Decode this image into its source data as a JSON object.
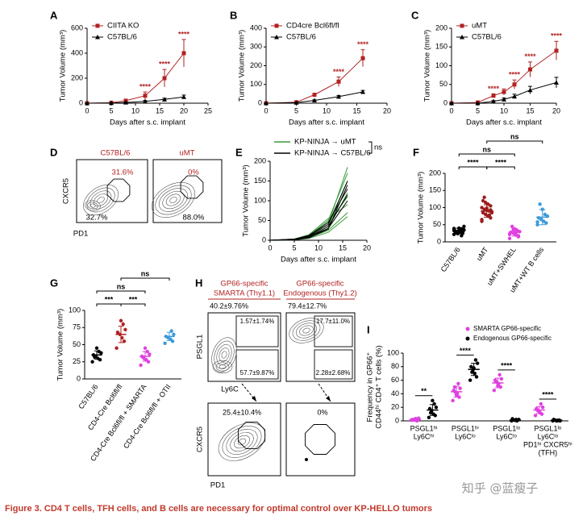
{
  "figure_caption": "Figure 3. CD4 T cells, TFH cells, and B cells are necessary for optimal control over KP-HELLO tumors",
  "watermark": "知乎 @蓝瘦子",
  "chart_data": [
    {
      "panel": "A",
      "type": "line",
      "x": [
        0,
        5,
        8,
        12,
        16,
        20
      ],
      "xlim": [
        0,
        25
      ],
      "xticks": [
        0,
        5,
        10,
        15,
        20,
        25
      ],
      "ylim": [
        0,
        600
      ],
      "yticks": [
        0,
        200,
        400,
        600
      ],
      "x_label": "Days after s.c. implant",
      "y_label": "Tumor Volume (mm³)",
      "legend": "upper left",
      "series": [
        {
          "name": "CIITA KO",
          "color": "#b22222",
          "marker": "square",
          "values": [
            0,
            4,
            20,
            60,
            200,
            400
          ],
          "errors": [
            0,
            3,
            10,
            30,
            70,
            110
          ]
        },
        {
          "name": "C57BL/6",
          "color": "#000000",
          "marker": "triangle",
          "values": [
            0,
            2,
            6,
            15,
            30,
            50
          ],
          "errors": [
            0,
            1,
            3,
            6,
            10,
            15
          ]
        }
      ],
      "significance": [
        {
          "x": 12,
          "label": "****"
        },
        {
          "x": 16,
          "label": "****"
        },
        {
          "x": 20,
          "label": "****"
        }
      ]
    },
    {
      "panel": "B",
      "type": "line",
      "x": [
        0,
        5,
        8,
        12,
        16
      ],
      "xlim": [
        0,
        20
      ],
      "xticks": [
        0,
        5,
        10,
        15,
        20
      ],
      "ylim": [
        0,
        400
      ],
      "yticks": [
        0,
        100,
        200,
        300,
        400
      ],
      "x_label": "Days after s.c. implant",
      "y_label": "Tumor Volume (mm³)",
      "legend": "upper left",
      "series": [
        {
          "name": "CD4cre Bcl6fl/fl",
          "color": "#b22222",
          "marker": "square",
          "values": [
            0,
            5,
            45,
            115,
            240
          ],
          "errors": [
            0,
            3,
            8,
            25,
            45
          ]
        },
        {
          "name": "C57BL/6",
          "color": "#000000",
          "marker": "triangle",
          "values": [
            0,
            3,
            15,
            35,
            60
          ],
          "errors": [
            0,
            1,
            3,
            6,
            8
          ]
        }
      ],
      "significance": [
        {
          "x": 12,
          "label": "****"
        },
        {
          "x": 16,
          "label": "****"
        }
      ]
    },
    {
      "panel": "C",
      "type": "line",
      "x": [
        0,
        5,
        8,
        10,
        12,
        15,
        20
      ],
      "xlim": [
        0,
        20
      ],
      "xticks": [
        0,
        5,
        10,
        15,
        20
      ],
      "ylim": [
        0,
        200
      ],
      "yticks": [
        0,
        50,
        100,
        150,
        200
      ],
      "x_label": "Days after s.c. implant",
      "y_label": "Tumor Volume (mm³)",
      "legend": "upper left",
      "series": [
        {
          "name": "uMT",
          "color": "#b22222",
          "marker": "square",
          "values": [
            0,
            2,
            20,
            30,
            50,
            90,
            140
          ],
          "errors": [
            0,
            1,
            5,
            8,
            12,
            20,
            25
          ]
        },
        {
          "name": "C57BL/6",
          "color": "#000000",
          "marker": "triangle",
          "values": [
            0,
            0,
            5,
            10,
            18,
            35,
            55
          ],
          "errors": [
            0,
            0,
            2,
            4,
            6,
            10,
            14
          ]
        }
      ],
      "significance": [
        {
          "x": 8,
          "label": "****"
        },
        {
          "x": 12,
          "label": "****"
        },
        {
          "x": 15,
          "label": "****"
        },
        {
          "x": 20,
          "label": "****"
        }
      ]
    },
    {
      "panel": "E",
      "type": "line",
      "x": [
        0,
        5,
        8,
        12,
        16
      ],
      "xlim": [
        0,
        20
      ],
      "xticks": [
        0,
        5,
        10,
        15,
        20
      ],
      "ylim": [
        0,
        200
      ],
      "yticks": [
        0,
        50,
        100,
        150,
        200
      ],
      "x_label": "Days after s.c. implant",
      "y_label": "Tumor Volume (mm³)",
      "legend": "top",
      "legend_annotation": "ns",
      "series": [
        {
          "name": "KP-NINJA → uMT",
          "color": "#3a9a3a",
          "lines": [
            [
              0,
              2,
              10,
              40,
              185
            ],
            [
              0,
              3,
              12,
              50,
              170
            ],
            [
              0,
              2,
              8,
              35,
              150
            ],
            [
              0,
              1,
              6,
              30,
              120
            ],
            [
              0,
              2,
              9,
              45,
              110
            ],
            [
              0,
              3,
              14,
              55,
              90
            ],
            [
              0,
              2,
              7,
              25,
              70
            ],
            [
              0,
              1,
              5,
              20,
              60
            ]
          ]
        },
        {
          "name": "KP-NINJA → C57BL/6",
          "color": "#000000",
          "lines": [
            [
              0,
              2,
              10,
              40,
              150
            ],
            [
              0,
              3,
              12,
              45,
              130
            ],
            [
              0,
              2,
              8,
              35,
              115
            ],
            [
              0,
              2,
              9,
              30,
              100
            ],
            [
              0,
              1,
              6,
              28,
              140
            ]
          ]
        }
      ]
    },
    {
      "panel": "F",
      "type": "dot",
      "y_label": "Tumor Volume (mm³)",
      "ylim": [
        0,
        200
      ],
      "yticks": [
        0,
        50,
        100,
        150,
        200
      ],
      "categories": [
        "C57BL/6",
        "uMT",
        "uMT+SWHEL",
        "uMT+WT B cells"
      ],
      "colors": [
        "#000000",
        "#9b1c1c",
        "#e040e0",
        "#3a9bd9"
      ],
      "points": [
        [
          22,
          25,
          28,
          30,
          32,
          35,
          38,
          40,
          27,
          33,
          29,
          36,
          24,
          31,
          45,
          18,
          34,
          26,
          39,
          30
        ],
        [
          60,
          70,
          75,
          80,
          85,
          88,
          90,
          92,
          95,
          100,
          105,
          110,
          115,
          120,
          85,
          78,
          98,
          130,
          65,
          93
        ],
        [
          10,
          15,
          20,
          25,
          28,
          30,
          33,
          38,
          45,
          22,
          18,
          27,
          35
        ],
        [
          50,
          55,
          60,
          65,
          70,
          75,
          80,
          95,
          110,
          58
        ]
      ],
      "means": [
        32,
        90,
        28,
        72
      ],
      "sds": [
        8,
        18,
        11,
        22
      ],
      "comparisons": [
        {
          "between": [
            0,
            1
          ],
          "label": "****"
        },
        {
          "between": [
            1,
            2
          ],
          "label": "****"
        },
        {
          "between": [
            0,
            2
          ],
          "label": "ns"
        },
        {
          "between": [
            1,
            3
          ],
          "label": "ns"
        }
      ]
    },
    {
      "panel": "G",
      "type": "dot",
      "y_label": "Tumor Volume (mm³)",
      "ylim": [
        0,
        100
      ],
      "yticks": [
        0,
        25,
        50,
        75,
        100
      ],
      "categories": [
        "C57BL/6",
        "CD4-Cre Bcl6fl/fl",
        "CD4-Cre Bcl6fl/fl + SMARTA",
        "CD4-Cre Bcl6fl/fl + OTII"
      ],
      "colors": [
        "#000000",
        "#b22222",
        "#e040e0",
        "#3a9bd9"
      ],
      "points": [
        [
          25,
          28,
          30,
          33,
          35,
          38,
          40,
          45,
          32
        ],
        [
          45,
          55,
          60,
          65,
          68,
          72,
          80,
          85
        ],
        [
          20,
          25,
          28,
          30,
          33,
          36,
          40,
          45,
          32
        ],
        [
          52,
          55,
          58,
          60,
          62,
          65,
          70
        ]
      ],
      "means": [
        35,
        65,
        33,
        62
      ],
      "sds": [
        6,
        12,
        7,
        6
      ],
      "comparisons": [
        {
          "between": [
            0,
            1
          ],
          "label": "***"
        },
        {
          "between": [
            1,
            2
          ],
          "label": "***"
        },
        {
          "between": [
            0,
            2
          ],
          "label": "ns"
        },
        {
          "between": [
            1,
            3
          ],
          "label": "ns"
        }
      ]
    },
    {
      "panel": "I",
      "type": "dot",
      "y_label": [
        "Frequency in GP66⁺",
        "CD44ʰⁱ CD4⁺ T cells (%)"
      ],
      "ylim": [
        0,
        100
      ],
      "yticks": [
        0,
        20,
        40,
        60,
        80,
        100
      ],
      "categories": [
        [
          "PSGL1ʰⁱ",
          "Ly6Cʰⁱ"
        ],
        [
          "PSGL1ʰⁱ",
          "Ly6Cˡᵒ"
        ],
        [
          "PSGL1ˡᵒ",
          "Ly6Cˡᵒ"
        ],
        [
          "PSGL1ˡᵒ",
          "Ly6Cˡᵒ",
          "PD1ʰⁱ CXCR5ʰⁱ",
          "(TFH)"
        ]
      ],
      "series": [
        {
          "name": "SMARTA GP66-specific",
          "color": "#e040e0",
          "points": [
            [
              1,
              2,
              3,
              1,
              2,
              4,
              0,
              3
            ],
            [
              30,
              35,
              40,
              42,
              45,
              48,
              55,
              38,
              50
            ],
            [
              45,
              50,
              55,
              57,
              60,
              62,
              68,
              52,
              58
            ],
            [
              8,
              10,
              12,
              15,
              18,
              20,
              25,
              14,
              16
            ]
          ],
          "means": [
            2,
            43,
            56,
            16
          ],
          "sds": [
            1.5,
            8,
            7,
            5
          ]
        },
        {
          "name": "Endogenous GP66-specific",
          "color": "#000000",
          "points": [
            [
              5,
              8,
              10,
              15,
              18,
              20,
              25,
              30,
              12
            ],
            [
              60,
              65,
              70,
              75,
              80,
              85,
              90,
              78,
              72
            ],
            [
              0,
              1,
              2,
              1,
              3,
              2,
              0,
              1
            ],
            [
              0,
              1,
              0,
              1,
              2,
              0,
              1,
              0
            ]
          ],
          "means": [
            16,
            76,
            1,
            1
          ],
          "sds": [
            8,
            9,
            1,
            0.7
          ]
        }
      ],
      "comparisons": [
        {
          "category": 0,
          "label": "**"
        },
        {
          "category": 1,
          "label": "****"
        },
        {
          "category": 2,
          "label": "****"
        },
        {
          "category": 3,
          "label": "****"
        }
      ]
    }
  ],
  "flow_panels": {
    "D": {
      "panel": "D",
      "titles": [
        "C57BL/6",
        "uMT"
      ],
      "upper_gates": [
        "31.6%",
        "0%"
      ],
      "lower_gates": [
        "32.7%",
        "88.0%"
      ],
      "y_label": "CXCR5",
      "x_label": "PD1"
    },
    "H": {
      "panel": "H",
      "titles": [
        [
          "GP66-specific",
          "SMARTA (Thy1.1)"
        ],
        [
          "GP66-specific",
          "Endogenous (Thy1.2)"
        ]
      ],
      "top_row": {
        "left_gates": [
          "40.2±9.76%",
          "79.4±12.7%"
        ],
        "upper_gates": [
          "1.57±1.74%",
          "17.7±11.0%"
        ],
        "lower_gates": [
          "57.7±9.87%",
          "2.28±2.68%"
        ],
        "y_label": "PSGL1",
        "x_label": "Ly6C"
      },
      "bottom_row": {
        "gates": [
          "25.4±10.4%",
          "0%"
        ],
        "y_label": "CXCR5",
        "x_label": "PD1"
      }
    }
  }
}
